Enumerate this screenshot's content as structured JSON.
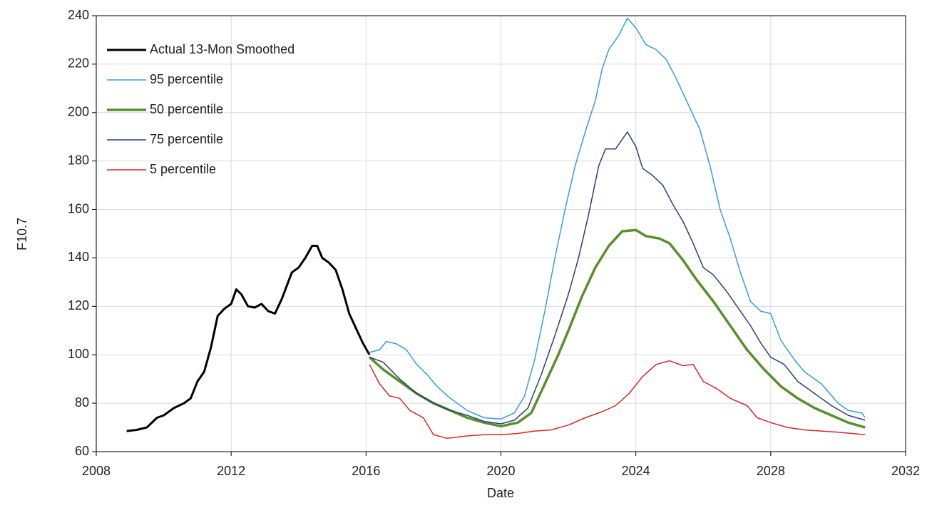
{
  "chart_data": {
    "type": "line",
    "x_label": "Date",
    "y_label": "F10.7",
    "xlim": [
      2008,
      2032
    ],
    "xticks": [
      2008,
      2012,
      2016,
      2020,
      2024,
      2028,
      2032
    ],
    "ylim": [
      60,
      240
    ],
    "yticks": [
      60,
      80,
      100,
      120,
      140,
      160,
      180,
      200,
      220,
      240
    ],
    "grid": true,
    "legend": "upper left",
    "series": [
      {
        "name": "Actual 13-Mon Smoothed",
        "color": "#000000",
        "x": [
          2008.9,
          2009.2,
          2009.5,
          2009.8,
          2010.0,
          2010.3,
          2010.6,
          2010.8,
          2011.0,
          2011.2,
          2011.4,
          2011.6,
          2011.8,
          2012.0,
          2012.15,
          2012.3,
          2012.5,
          2012.7,
          2012.9,
          2013.1,
          2013.3,
          2013.5,
          2013.8,
          2014.0,
          2014.2,
          2014.4,
          2014.55,
          2014.7,
          2014.9,
          2015.1,
          2015.3,
          2015.5,
          2015.7,
          2015.9,
          2016.1
        ],
        "values": [
          68.5,
          69,
          70,
          74,
          75,
          78,
          80,
          82,
          89,
          93,
          103,
          116,
          119,
          121,
          127,
          125,
          120,
          119.5,
          121,
          118,
          117,
          123,
          134,
          136,
          140,
          145,
          145,
          140,
          138,
          135,
          127,
          117,
          111,
          105,
          100
        ]
      },
      {
        "name": "95 percentile",
        "color": "#3b9ae1",
        "x": [
          2016.1,
          2016.4,
          2016.6,
          2016.9,
          2017.2,
          2017.5,
          2017.8,
          2018.1,
          2018.5,
          2019.0,
          2019.5,
          2020.0,
          2020.4,
          2020.7,
          2021.0,
          2021.3,
          2021.6,
          2021.9,
          2022.2,
          2022.5,
          2022.8,
          2023.0,
          2023.2,
          2023.5,
          2023.75,
          2024.0,
          2024.3,
          2024.6,
          2024.9,
          2025.2,
          2025.6,
          2025.9,
          2026.2,
          2026.5,
          2026.8,
          2027.1,
          2027.4,
          2027.7,
          2028.0,
          2028.3,
          2028.7,
          2029.0,
          2029.5,
          2030.0,
          2030.3,
          2030.7,
          2030.8
        ],
        "values": [
          101,
          102,
          105.5,
          104.5,
          102,
          96,
          92,
          87,
          82,
          77,
          74,
          73.5,
          76,
          83,
          98,
          118,
          140,
          160,
          178,
          192,
          205,
          218,
          226,
          232,
          239,
          235,
          228,
          226,
          222,
          214,
          202,
          193,
          178,
          160,
          148,
          134,
          122,
          118,
          117,
          106,
          98,
          93,
          88,
          80,
          77,
          76,
          74
        ]
      },
      {
        "name": "50 percentile",
        "color": "#5b8f2e",
        "x": [
          2016.1,
          2016.5,
          2017.0,
          2017.5,
          2018.0,
          2018.5,
          2019.0,
          2019.5,
          2020.0,
          2020.5,
          2020.9,
          2021.3,
          2021.7,
          2022.0,
          2022.4,
          2022.8,
          2023.2,
          2023.6,
          2024.0,
          2024.3,
          2024.7,
          2025.0,
          2025.4,
          2025.8,
          2026.3,
          2026.8,
          2027.3,
          2027.8,
          2028.3,
          2028.8,
          2029.3,
          2029.8,
          2030.3,
          2030.8
        ],
        "values": [
          99,
          94,
          89,
          84,
          80,
          77,
          74,
          72,
          70.5,
          72,
          76,
          88,
          100,
          110,
          124,
          136,
          145,
          151,
          151.5,
          149,
          148,
          146,
          139,
          131,
          122,
          112,
          102,
          94,
          87,
          82,
          78,
          75,
          72,
          70
        ]
      },
      {
        "name": "75 percentile",
        "color": "#2c3e7a",
        "x": [
          2016.1,
          2016.5,
          2017.0,
          2017.5,
          2018.0,
          2018.5,
          2019.0,
          2019.5,
          2020.0,
          2020.4,
          2020.8,
          2021.2,
          2021.6,
          2022.0,
          2022.3,
          2022.6,
          2022.9,
          2023.1,
          2023.4,
          2023.75,
          2024.0,
          2024.2,
          2024.5,
          2024.8,
          2025.1,
          2025.4,
          2025.7,
          2026.0,
          2026.3,
          2026.7,
          2027.0,
          2027.4,
          2027.7,
          2028.0,
          2028.4,
          2028.8,
          2029.3,
          2029.8,
          2030.3,
          2030.8
        ],
        "values": [
          99,
          97,
          90,
          84,
          80,
          77,
          75,
          72.5,
          71.5,
          73,
          78,
          92,
          108,
          125,
          140,
          158,
          178,
          185,
          185,
          192,
          186,
          177,
          174,
          170,
          162,
          155,
          146,
          136,
          133,
          126,
          120,
          112,
          105,
          99,
          96,
          89,
          84,
          79,
          75,
          73
        ]
      },
      {
        "name": "5 percentile",
        "color": "#d62728",
        "x": [
          2016.1,
          2016.4,
          2016.7,
          2017.0,
          2017.3,
          2017.7,
          2018.0,
          2018.4,
          2019.0,
          2019.5,
          2020.0,
          2020.5,
          2021.0,
          2021.5,
          2022.0,
          2022.5,
          2023.0,
          2023.4,
          2023.8,
          2024.2,
          2024.6,
          2025.0,
          2025.4,
          2025.7,
          2026.0,
          2026.4,
          2026.8,
          2027.3,
          2027.6,
          2028.0,
          2028.5,
          2029.0,
          2029.5,
          2030.0,
          2030.8
        ],
        "values": [
          96,
          88,
          83,
          82,
          77,
          74,
          67,
          65.5,
          66.5,
          67,
          67,
          67.5,
          68.5,
          69,
          71,
          74,
          76.5,
          79,
          84,
          91,
          96,
          97.5,
          95.5,
          96,
          89,
          86,
          82,
          79,
          74,
          72,
          70,
          69,
          68.5,
          68,
          67
        ]
      }
    ]
  }
}
